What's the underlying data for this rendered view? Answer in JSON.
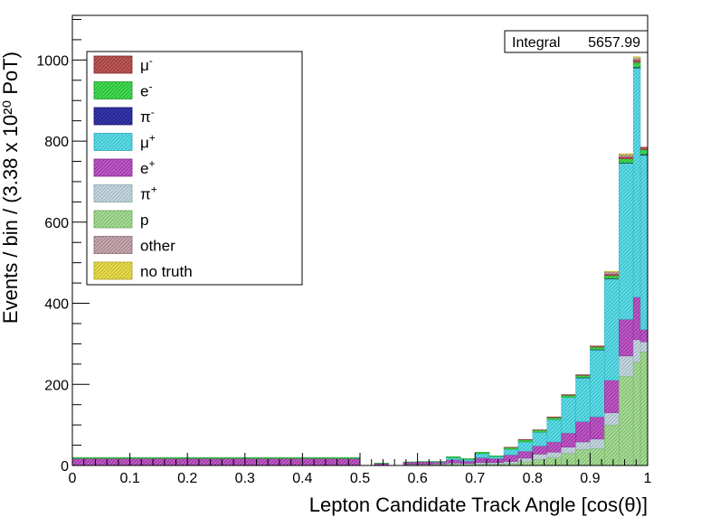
{
  "chart_data": {
    "type": "stacked-histogram",
    "xlabel": "Lepton Candidate Track Angle [cos(θ)]",
    "ylabel": "Events / bin / (3.38 x 10²⁰ PoT)",
    "xlim": [
      0,
      1
    ],
    "ylim": [
      0,
      1110
    ],
    "x_ticks": [
      "0",
      "0.1",
      "0.2",
      "0.3",
      "0.4",
      "0.5",
      "0.6",
      "0.7",
      "0.8",
      "0.9",
      "1"
    ],
    "y_ticks": [
      "0",
      "200",
      "400",
      "600",
      "800",
      "1000"
    ],
    "grid": false,
    "legend_position": "top-left",
    "stats_box": {
      "label": "Integral",
      "value": "5657.99"
    },
    "bins": [
      {
        "x0": 0.0,
        "x1": 0.5,
        "counts": [
          0,
          3,
          0,
          0,
          17,
          0,
          0,
          0,
          0
        ]
      },
      {
        "x0": 0.5,
        "x1": 0.525,
        "counts": [
          0,
          0,
          0,
          0,
          0,
          0,
          0,
          0,
          0
        ]
      },
      {
        "x0": 0.525,
        "x1": 0.55,
        "counts": [
          0,
          1,
          0,
          0,
          3,
          1,
          1,
          0,
          0
        ]
      },
      {
        "x0": 0.55,
        "x1": 0.575,
        "counts": [
          0,
          0,
          0,
          0,
          0,
          0,
          0,
          0,
          0
        ]
      },
      {
        "x0": 0.575,
        "x1": 0.6,
        "counts": [
          0,
          1,
          0,
          0,
          5,
          1,
          2,
          0,
          0
        ]
      },
      {
        "x0": 0.6,
        "x1": 0.625,
        "counts": [
          0,
          1,
          0,
          0,
          6,
          1,
          2,
          0,
          0
        ]
      },
      {
        "x0": 0.625,
        "x1": 0.65,
        "counts": [
          0,
          1,
          0,
          1,
          4,
          2,
          2,
          0,
          0
        ]
      },
      {
        "x0": 0.65,
        "x1": 0.675,
        "counts": [
          0,
          3,
          0,
          5,
          8,
          2,
          4,
          0,
          0
        ]
      },
      {
        "x0": 0.675,
        "x1": 0.7,
        "counts": [
          0,
          2,
          0,
          4,
          6,
          2,
          3,
          0,
          0
        ]
      },
      {
        "x0": 0.7,
        "x1": 0.725,
        "counts": [
          0,
          4,
          0,
          10,
          12,
          3,
          4,
          0,
          0
        ]
      },
      {
        "x0": 0.725,
        "x1": 0.75,
        "counts": [
          0,
          2,
          0,
          5,
          10,
          3,
          4,
          0,
          0
        ]
      },
      {
        "x0": 0.75,
        "x1": 0.775,
        "counts": [
          1,
          4,
          0,
          14,
          16,
          5,
          5,
          0,
          0
        ]
      },
      {
        "x0": 0.775,
        "x1": 0.8,
        "counts": [
          1,
          5,
          0,
          23,
          17,
          9,
          9,
          0,
          0
        ]
      },
      {
        "x0": 0.8,
        "x1": 0.825,
        "counts": [
          1,
          5,
          0,
          34,
          20,
          13,
          15,
          0,
          0
        ]
      },
      {
        "x0": 0.825,
        "x1": 0.85,
        "counts": [
          2,
          5,
          0,
          55,
          25,
          13,
          20,
          0,
          0
        ]
      },
      {
        "x0": 0.85,
        "x1": 0.875,
        "counts": [
          2,
          5,
          0,
          88,
          35,
          15,
          30,
          0,
          0
        ]
      },
      {
        "x0": 0.875,
        "x1": 0.9,
        "counts": [
          2,
          5,
          1,
          108,
          50,
          18,
          40,
          0,
          0
        ]
      },
      {
        "x0": 0.9,
        "x1": 0.925,
        "counts": [
          3,
          6,
          1,
          165,
          55,
          23,
          42,
          0,
          0
        ]
      },
      {
        "x0": 0.925,
        "x1": 0.95,
        "counts": [
          4,
          7,
          1,
          250,
          80,
          30,
          100,
          5,
          2
        ]
      },
      {
        "x0": 0.95,
        "x1": 0.975,
        "counts": [
          5,
          10,
          1,
          385,
          90,
          50,
          220,
          5,
          3
        ]
      },
      {
        "x0": 0.975,
        "x1": 0.9875,
        "counts": [
          6,
          12,
          2,
          565,
          105,
          55,
          255,
          5,
          3
        ]
      },
      {
        "x0": 0.9875,
        "x1": 1.0,
        "counts": [
          6,
          12,
          2,
          430,
          30,
          25,
          280,
          0,
          0
        ]
      }
    ],
    "series": [
      {
        "name": "μ⁻",
        "label_main": "μ",
        "label_sup": "-",
        "color": "#c05a5a",
        "hatch": "#7a2a2a"
      },
      {
        "name": "e⁻",
        "label_main": "e",
        "label_sup": "-",
        "color": "#44dd55",
        "hatch": "#1a9a28"
      },
      {
        "name": "π⁻",
        "label_main": "π",
        "label_sup": "-",
        "color": "#3838b0",
        "hatch": "#12126a"
      },
      {
        "name": "μ⁺",
        "label_main": "μ",
        "label_sup": "+",
        "color": "#5fdde8",
        "hatch": "#2aa8b5"
      },
      {
        "name": "e⁺",
        "label_main": "e",
        "label_sup": "+",
        "color": "#c05ac8",
        "hatch": "#82228a"
      },
      {
        "name": "π⁺",
        "label_main": "π",
        "label_sup": "+",
        "color": "#c8d8e0",
        "hatch": "#8aa2ae"
      },
      {
        "name": "p",
        "label_main": "p",
        "label_sup": "",
        "color": "#a8dc98",
        "hatch": "#6aa85a"
      },
      {
        "name": "other",
        "label_main": "other",
        "label_sup": "",
        "color": "#c8aab0",
        "hatch": "#8a6a72"
      },
      {
        "name": "no truth",
        "label_main": "no truth",
        "label_sup": "",
        "color": "#e8dc50",
        "hatch": "#b0a420"
      }
    ],
    "stack_order": [
      6,
      5,
      4,
      3,
      2,
      1,
      0,
      7,
      8
    ]
  }
}
